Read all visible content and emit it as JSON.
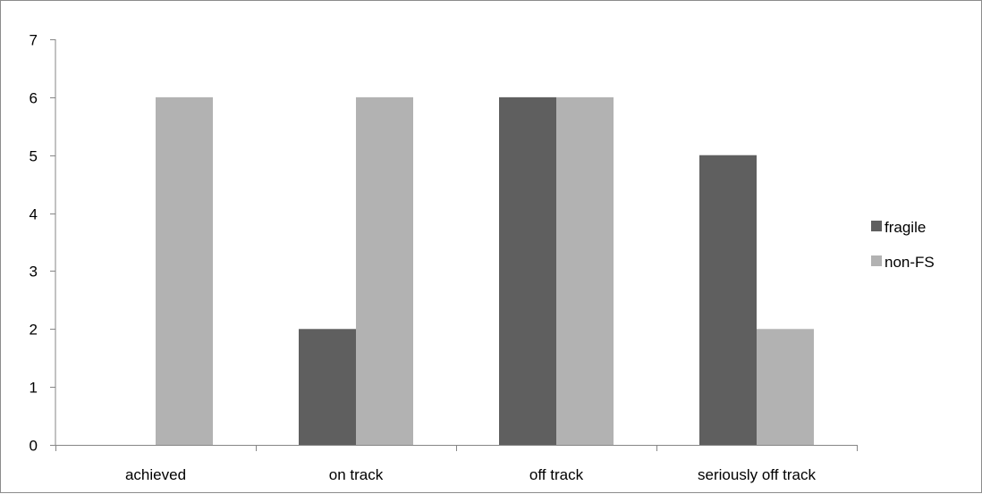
{
  "chart_data": {
    "type": "bar",
    "title": "",
    "xlabel": "",
    "ylabel": "",
    "categories": [
      "achieved",
      "on track",
      "off track",
      "seriously off track"
    ],
    "series": [
      {
        "name": "fragile",
        "values": [
          0,
          2,
          6,
          5
        ],
        "color": "#5f5f5f"
      },
      {
        "name": "non-FS",
        "values": [
          6,
          6,
          6,
          2
        ],
        "color": "#b2b2b2"
      }
    ],
    "ylim": [
      0,
      7
    ],
    "yticks": [
      "0",
      "1",
      "2",
      "3",
      "4",
      "5",
      "6",
      "7"
    ],
    "grid": false,
    "legend_position": "right"
  }
}
